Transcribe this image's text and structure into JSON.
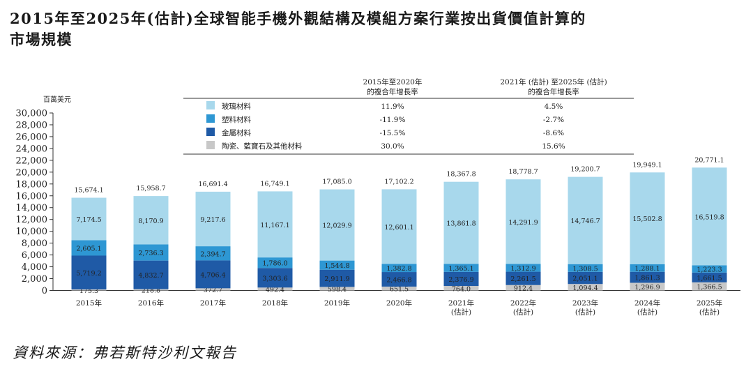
{
  "title_line1": "2015年至2025年(估計)全球智能手機外觀結構及模組方案行業按出貨價值計算的",
  "title_line2": "市場規模",
  "source": "資料來源：弗若斯特沙利文報告",
  "chart_data": {
    "type": "stacked-bar",
    "unit_label": "百萬美元",
    "ylim": [
      0,
      30000
    ],
    "yticks": [
      "0",
      "2,000",
      "4,000",
      "6,000",
      "8,000",
      "10,000",
      "12,000",
      "14,000",
      "16,000",
      "18,000",
      "20,000",
      "22,000",
      "24,000",
      "26,000",
      "28,000",
      "30,000"
    ],
    "ytick_values": [
      0,
      2000,
      4000,
      6000,
      8000,
      10000,
      12000,
      14000,
      16000,
      18000,
      20000,
      22000,
      24000,
      26000,
      28000,
      30000
    ],
    "categories": [
      {
        "year": "2015年",
        "est": ""
      },
      {
        "year": "2016年",
        "est": ""
      },
      {
        "year": "2017年",
        "est": ""
      },
      {
        "year": "2018年",
        "est": ""
      },
      {
        "year": "2019年",
        "est": ""
      },
      {
        "year": "2020年",
        "est": ""
      },
      {
        "year": "2021年",
        "est": "(估計)"
      },
      {
        "year": "2022年",
        "est": "(估計)"
      },
      {
        "year": "2023年",
        "est": "(估計)"
      },
      {
        "year": "2024年",
        "est": "(估計)"
      },
      {
        "year": "2025年",
        "est": "(估計)"
      }
    ],
    "series": [
      {
        "name": "陶瓷、藍寶石及其他材料",
        "color": "#c8c8c8",
        "values": [
          175.3,
          218.8,
          372.7,
          492.4,
          598.4,
          651.5,
          764.0,
          912.4,
          1094.4,
          1296.9,
          1366.5
        ],
        "labels": [
          "175.3",
          "218.8",
          "372.7",
          "492.4",
          "598.4",
          "651.5",
          "764.0",
          "912.4",
          "1,094.4",
          "1,296.9",
          "1,366.5"
        ],
        "cagr_2015_2020": "30.0%",
        "cagr_2021_2025": "15.6%"
      },
      {
        "name": "金屬材料",
        "color": "#1f5aa6",
        "values": [
          5719.2,
          4832.7,
          4706.4,
          3303.6,
          2911.9,
          2466.8,
          2376.9,
          2261.5,
          2051.1,
          1861.3,
          1661.5
        ],
        "labels": [
          "5,719.2",
          "4,832.7",
          "4,706.4",
          "3,303.6",
          "2,911.9",
          "2,466.8",
          "2,376.9",
          "2,261.5",
          "2,051.1",
          "1,861.3",
          "1,661.5"
        ],
        "cagr_2015_2020": "-15.5%",
        "cagr_2021_2025": "-8.6%"
      },
      {
        "name": "塑料材料",
        "color": "#2e97d3",
        "values": [
          2605.1,
          2736.3,
          2394.7,
          1786.0,
          1544.8,
          1382.8,
          1365.1,
          1312.9,
          1308.5,
          1288.1,
          1223.3
        ],
        "labels": [
          "2,605.1",
          "2,736.3",
          "2,394.7",
          "1,786.0",
          "1,544.8",
          "1,382.8",
          "1,365.1",
          "1,312.9",
          "1,308.5",
          "1,288.1",
          "1,223.3"
        ],
        "cagr_2015_2020": "-11.9%",
        "cagr_2021_2025": "-2.7%"
      },
      {
        "name": "玻璃材料",
        "color": "#a8d8ec",
        "values": [
          7174.5,
          8170.9,
          9217.6,
          11167.1,
          12029.9,
          12601.1,
          13861.8,
          14291.9,
          14746.7,
          15502.8,
          16519.8
        ],
        "labels": [
          "7,174.5",
          "8,170.9",
          "9,217.6",
          "11,167.1",
          "12,029.9",
          "12,601.1",
          "13,861.8",
          "14,291.9",
          "14,746.7",
          "15,502.8",
          "16,519.8"
        ],
        "cagr_2015_2020": "11.9%",
        "cagr_2021_2025": "4.5%"
      }
    ],
    "totals": [
      "15,674.1",
      "15,958.7",
      "16,691.4",
      "16,749.1",
      "17,085.0",
      "17,102.2",
      "18,367.8",
      "18,778.7",
      "19,200.7",
      "19,949.1",
      "20,771.1"
    ],
    "cagr_header_1": [
      "2015年至2020年",
      "的複合年增長率"
    ],
    "cagr_header_2": [
      "2021年 (估計) 至2025年 (估計)",
      "的複合年增長率"
    ],
    "legend_order": [
      "玻璃材料",
      "塑料材料",
      "金屬材料",
      "陶瓷、藍寶石及其他材料"
    ]
  }
}
